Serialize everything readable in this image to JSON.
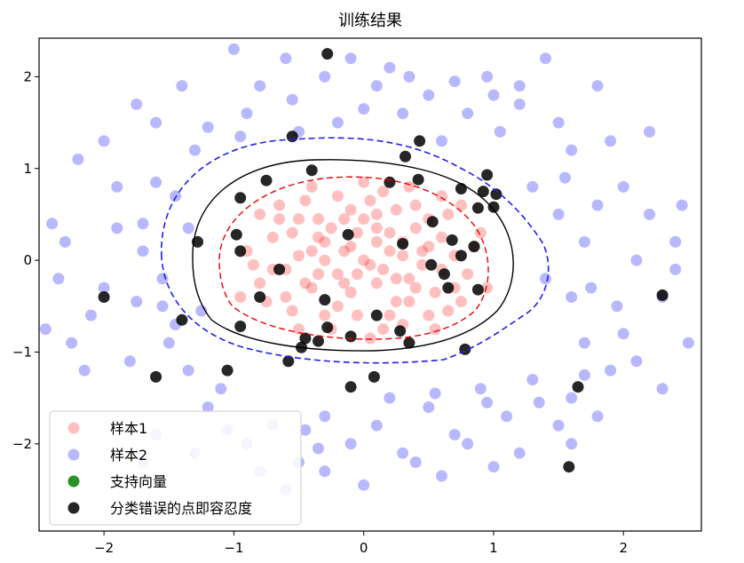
{
  "chart_data": {
    "type": "scatter",
    "title": "训练结果",
    "xlabel": "",
    "ylabel": "",
    "xlim": [
      -2.5,
      2.6
    ],
    "ylim": [
      -2.95,
      2.42
    ],
    "xticks": [
      -2,
      -1,
      0,
      1,
      2
    ],
    "yticks": [
      -2,
      -1,
      0,
      1,
      2
    ],
    "xtick_labels": [
      "−2",
      "−1",
      "0",
      "1",
      "2"
    ],
    "ytick_labels": [
      "−2",
      "−1",
      "0",
      "1",
      "2"
    ],
    "legend": {
      "placement": "lower-left",
      "entries": [
        "样本1",
        "样本2",
        "支持向量",
        "分类错误的点即容忍度"
      ]
    },
    "series": [
      {
        "name": "样本1",
        "color": "#ff0000",
        "alpha": 0.25,
        "points": [
          [
            -0.15,
            0.1
          ],
          [
            0.05,
            -0.05
          ],
          [
            -0.3,
            0.2
          ],
          [
            0.2,
            0.3
          ],
          [
            0.35,
            -0.2
          ],
          [
            -0.4,
            -0.3
          ],
          [
            0.1,
            0.5
          ],
          [
            -0.2,
            -0.5
          ],
          [
            0.45,
            0.1
          ],
          [
            -0.5,
            0.05
          ],
          [
            0.6,
            0.25
          ],
          [
            -0.6,
            -0.1
          ],
          [
            0.25,
            -0.45
          ],
          [
            -0.1,
            0.55
          ],
          [
            0.55,
            -0.35
          ],
          [
            -0.35,
            0.45
          ],
          [
            0.7,
            0.05
          ],
          [
            -0.7,
            0.25
          ],
          [
            0.15,
            0.75
          ],
          [
            -0.25,
            -0.75
          ],
          [
            0.8,
            -0.15
          ],
          [
            -0.8,
            -0.25
          ],
          [
            0.4,
            0.6
          ],
          [
            -0.45,
            0.65
          ],
          [
            0.3,
            -0.7
          ],
          [
            -0.55,
            -0.55
          ],
          [
            0.65,
            0.5
          ],
          [
            -0.65,
            0.45
          ],
          [
            0.9,
            0.3
          ],
          [
            -0.9,
            0.1
          ],
          [
            0.0,
            0.85
          ],
          [
            0.05,
            -0.85
          ],
          [
            0.5,
            -0.6
          ],
          [
            -0.3,
            -0.6
          ],
          [
            0.75,
            -0.45
          ],
          [
            -0.75,
            -0.45
          ],
          [
            0.2,
            0.1
          ],
          [
            -0.05,
            0.3
          ],
          [
            0.1,
            -0.25
          ],
          [
            -0.2,
            -0.15
          ],
          [
            0.3,
            0.05
          ],
          [
            -0.1,
            -0.35
          ],
          [
            0.4,
            0.35
          ],
          [
            -0.4,
            0.1
          ],
          [
            0.0,
            0.0
          ],
          [
            0.15,
            -0.1
          ],
          [
            -0.25,
            0.35
          ],
          [
            0.35,
            -0.45
          ],
          [
            -0.15,
            -0.25
          ],
          [
            0.6,
            -0.1
          ],
          [
            -0.55,
            0.3
          ],
          [
            0.25,
            0.55
          ],
          [
            -0.35,
            -0.15
          ],
          [
            0.5,
            0.45
          ],
          [
            -0.6,
            -0.4
          ],
          [
            0.7,
            -0.3
          ],
          [
            -0.2,
            0.7
          ],
          [
            0.1,
            0.35
          ],
          [
            -0.45,
            -0.25
          ],
          [
            0.45,
            -0.05
          ],
          [
            0.85,
            0.15
          ],
          [
            -0.85,
            -0.05
          ],
          [
            0.2,
            -0.6
          ],
          [
            -0.1,
            0.15
          ],
          [
            0.05,
            0.65
          ],
          [
            0.6,
            0.7
          ],
          [
            -0.65,
            0.6
          ],
          [
            0.35,
            0.8
          ],
          [
            -0.4,
            0.8
          ],
          [
            0.75,
            0.6
          ],
          [
            -0.8,
            0.5
          ],
          [
            0.95,
            -0.3
          ],
          [
            -0.95,
            -0.4
          ],
          [
            0.55,
            -0.75
          ],
          [
            -0.5,
            -0.75
          ],
          [
            0.15,
            -0.75
          ],
          [
            -0.05,
            -0.6
          ],
          [
            0.3,
            0.2
          ],
          [
            -0.3,
            0.0
          ],
          [
            0.0,
            0.45
          ],
          [
            0.25,
            -0.2
          ],
          [
            -0.15,
            0.45
          ],
          [
            0.5,
            0.15
          ],
          [
            -0.5,
            0.45
          ],
          [
            0.65,
            -0.55
          ],
          [
            -0.7,
            -0.1
          ],
          [
            0.4,
            -0.3
          ],
          [
            -0.35,
            0.25
          ],
          [
            0.1,
            0.2
          ],
          [
            -0.05,
            -0.15
          ]
        ]
      },
      {
        "name": "样本2",
        "color": "#0000ff",
        "alpha": 0.28,
        "points": [
          [
            -2.2,
            1.1
          ],
          [
            -1.9,
            0.8
          ],
          [
            -2.3,
            0.2
          ],
          [
            -2.0,
            -0.3
          ],
          [
            -2.1,
            -0.6
          ],
          [
            -1.8,
            -1.1
          ],
          [
            -2.25,
            -0.9
          ],
          [
            -1.6,
            1.5
          ],
          [
            -1.7,
            0.4
          ],
          [
            -1.55,
            -0.5
          ],
          [
            -1.4,
            1.9
          ],
          [
            -1.3,
            1.2
          ],
          [
            -1.45,
            0.7
          ],
          [
            -1.5,
            -0.9
          ],
          [
            -1.35,
            -1.2
          ],
          [
            -1.2,
            -1.6
          ],
          [
            -1.6,
            -1.9
          ],
          [
            -1.0,
            2.3
          ],
          [
            -0.9,
            1.6
          ],
          [
            -0.8,
            1.9
          ],
          [
            -0.6,
            2.2
          ],
          [
            -0.5,
            1.4
          ],
          [
            -0.3,
            2.0
          ],
          [
            -0.2,
            1.5
          ],
          [
            -0.1,
            2.2
          ],
          [
            0.1,
            1.9
          ],
          [
            0.2,
            2.1
          ],
          [
            0.3,
            1.6
          ],
          [
            0.5,
            1.8
          ],
          [
            0.6,
            1.3
          ],
          [
            0.8,
            1.6
          ],
          [
            1.0,
            1.8
          ],
          [
            1.2,
            1.7
          ],
          [
            1.4,
            2.2
          ],
          [
            1.5,
            1.5
          ],
          [
            1.6,
            1.2
          ],
          [
            1.8,
            1.9
          ],
          [
            1.9,
            1.3
          ],
          [
            2.0,
            0.8
          ],
          [
            2.2,
            0.5
          ],
          [
            2.1,
            0.0
          ],
          [
            2.3,
            -0.4
          ],
          [
            2.0,
            -0.8
          ],
          [
            1.9,
            -1.2
          ],
          [
            1.7,
            -0.9
          ],
          [
            1.6,
            -1.5
          ],
          [
            1.5,
            -1.8
          ],
          [
            1.3,
            -1.3
          ],
          [
            1.1,
            -1.7
          ],
          [
            0.9,
            -1.4
          ],
          [
            0.7,
            -1.9
          ],
          [
            0.5,
            -1.6
          ],
          [
            0.3,
            -2.1
          ],
          [
            0.1,
            -1.8
          ],
          [
            -0.1,
            -2.0
          ],
          [
            -0.3,
            -1.7
          ],
          [
            -0.5,
            -2.2
          ],
          [
            -0.7,
            -1.8
          ],
          [
            -0.9,
            -2.0
          ],
          [
            -1.1,
            -1.4
          ],
          [
            1.5,
            0.5
          ],
          [
            1.7,
            0.2
          ],
          [
            1.4,
            -0.2
          ],
          [
            1.6,
            -0.4
          ],
          [
            1.3,
            0.8
          ],
          [
            1.8,
            0.6
          ],
          [
            1.55,
            0.9
          ],
          [
            1.75,
            -0.3
          ],
          [
            -1.7,
            0.1
          ],
          [
            -1.55,
            -0.2
          ],
          [
            -1.75,
            -0.45
          ],
          [
            -1.9,
            0.35
          ],
          [
            -1.6,
            0.85
          ],
          [
            -1.45,
            -0.7
          ],
          [
            -1.35,
            0.35
          ],
          [
            -1.25,
            -0.55
          ],
          [
            2.4,
            0.2
          ],
          [
            2.5,
            -0.9
          ],
          [
            2.3,
            -1.4
          ],
          [
            2.2,
            1.4
          ],
          [
            -2.4,
            0.4
          ],
          [
            -2.35,
            -0.2
          ],
          [
            -2.0,
            1.3
          ],
          [
            -1.75,
            1.7
          ],
          [
            -1.2,
            1.45
          ],
          [
            -0.95,
            1.35
          ],
          [
            -0.55,
            1.75
          ],
          [
            0.0,
            1.65
          ],
          [
            0.35,
            2.0
          ],
          [
            0.7,
            1.95
          ],
          [
            1.05,
            1.4
          ],
          [
            1.2,
            1.9
          ],
          [
            0.95,
            2.0
          ],
          [
            -0.3,
            -2.3
          ],
          [
            0.0,
            -2.45
          ],
          [
            0.4,
            -2.2
          ],
          [
            0.8,
            -2.0
          ],
          [
            1.2,
            -2.1
          ],
          [
            1.6,
            -2.0
          ],
          [
            -0.8,
            -2.3
          ],
          [
            -1.3,
            -2.1
          ],
          [
            -1.7,
            -2.2
          ],
          [
            -0.6,
            -2.5
          ],
          [
            -0.45,
            -1.85
          ],
          [
            0.6,
            -2.35
          ],
          [
            1.0,
            -2.25
          ],
          [
            1.8,
            -1.7
          ],
          [
            2.1,
            -1.1
          ],
          [
            2.4,
            -0.1
          ],
          [
            2.45,
            0.6
          ],
          [
            -2.45,
            -0.75
          ],
          [
            -2.15,
            -1.2
          ],
          [
            -1.05,
            -1.85
          ],
          [
            -0.35,
            -2.05
          ],
          [
            0.2,
            -1.5
          ],
          [
            0.55,
            -1.45
          ],
          [
            0.95,
            -1.55
          ],
          [
            1.35,
            -1.55
          ],
          [
            1.7,
            -1.25
          ],
          [
            1.95,
            -0.5
          ]
        ]
      },
      {
        "name": "支持向量",
        "color": "#008000",
        "alpha": 0.85,
        "points": []
      },
      {
        "name": "分类错误的点即容忍度",
        "color": "#000000",
        "alpha": 0.85,
        "points": [
          [
            -0.28,
            2.25
          ],
          [
            -0.55,
            1.35
          ],
          [
            -0.4,
            0.98
          ],
          [
            -0.75,
            0.87
          ],
          [
            -0.95,
            0.68
          ],
          [
            -1.28,
            0.2
          ],
          [
            -0.98,
            0.28
          ],
          [
            -0.95,
            0.1
          ],
          [
            -0.65,
            -0.1
          ],
          [
            -0.8,
            -0.4
          ],
          [
            -1.4,
            -0.65
          ],
          [
            -0.95,
            -0.72
          ],
          [
            -0.45,
            -0.85
          ],
          [
            -0.48,
            -0.95
          ],
          [
            -0.35,
            -0.88
          ],
          [
            -0.28,
            -0.73
          ],
          [
            -0.1,
            -0.83
          ],
          [
            0.1,
            -0.6
          ],
          [
            0.28,
            -0.77
          ],
          [
            -0.3,
            -0.43
          ],
          [
            -0.12,
            0.28
          ],
          [
            0.65,
            -0.3
          ],
          [
            0.62,
            -0.15
          ],
          [
            0.52,
            -0.05
          ],
          [
            0.3,
            0.18
          ],
          [
            0.53,
            0.42
          ],
          [
            0.68,
            0.22
          ],
          [
            0.75,
            0.05
          ],
          [
            0.85,
            0.15
          ],
          [
            0.88,
            -0.32
          ],
          [
            0.78,
            -0.97
          ],
          [
            0.35,
            -0.9
          ],
          [
            0.2,
            0.85
          ],
          [
            0.42,
            0.88
          ],
          [
            0.32,
            1.13
          ],
          [
            0.43,
            1.3
          ],
          [
            0.75,
            0.78
          ],
          [
            0.92,
            0.75
          ],
          [
            1.02,
            0.72
          ],
          [
            1.0,
            0.58
          ],
          [
            0.88,
            0.57
          ],
          [
            -0.58,
            -1.1
          ],
          [
            -1.05,
            -1.2
          ],
          [
            -1.6,
            -1.27
          ],
          [
            -2.0,
            -0.4
          ],
          [
            -0.1,
            -1.38
          ],
          [
            0.08,
            -1.27
          ],
          [
            1.65,
            -1.38
          ],
          [
            1.58,
            -2.25
          ],
          [
            2.3,
            -0.38
          ],
          [
            0.95,
            0.93
          ]
        ]
      }
    ]
  }
}
